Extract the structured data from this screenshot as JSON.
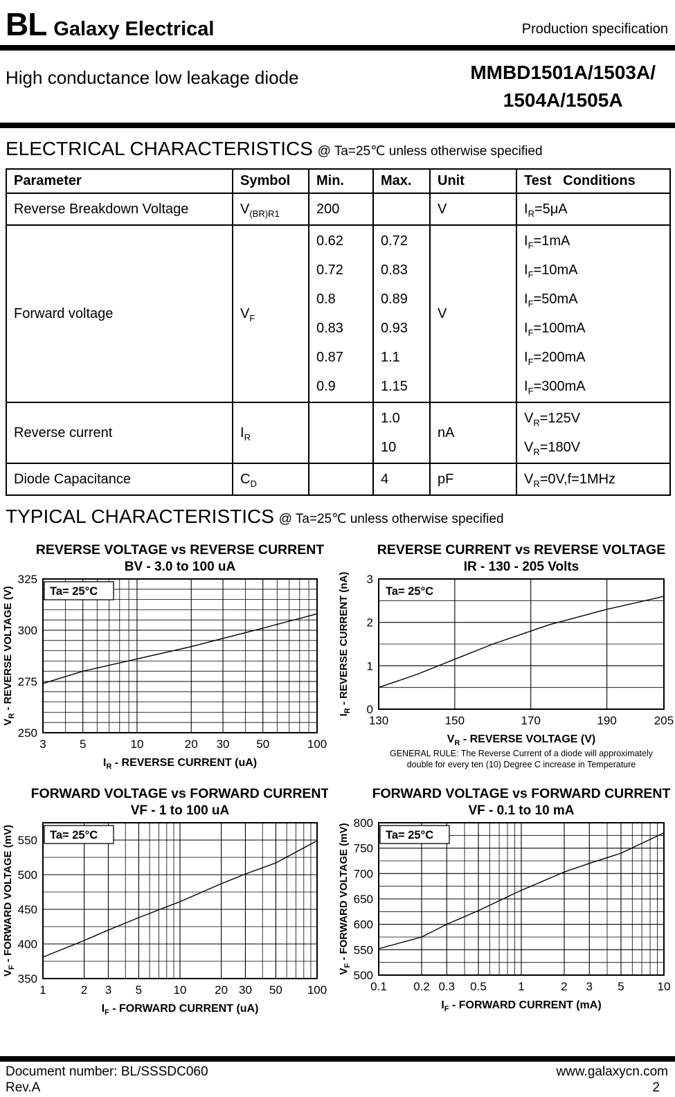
{
  "page": {
    "header": {
      "logo_bl": "BL",
      "logo_rest": "Galaxy Electrical",
      "right": "Production specification"
    },
    "title": {
      "left": "High conductance low leakage diode",
      "right_line1": "MMBD1501A/1503A/",
      "right_line2": "1504A/1505A"
    },
    "elec_heading": {
      "main": "ELECTRICAL CHARACTERISTICS",
      "suffix": "@ Ta=25℃  unless otherwise specified"
    },
    "typ_heading": {
      "main": "TYPICAL CHARACTERISTICS",
      "suffix": "@ Ta=25℃ unless otherwise specified"
    },
    "footer": {
      "doc_number": "Document number: BL/SSSDC060",
      "rev": "Rev.A",
      "website": "www.galaxycn.com",
      "page_number": "2"
    }
  },
  "table": {
    "headers": [
      "Parameter",
      "Symbol",
      "Min.",
      "Max.",
      "Unit",
      "Test   Conditions"
    ],
    "rows": [
      {
        "param": [
          [
            {
              "t": "Reverse Breakdown Voltage"
            }
          ]
        ],
        "symbol": [
          [
            {
              "t": "V"
            },
            {
              "t": "(BR)R1",
              "sub": true
            }
          ]
        ],
        "min": [
          [
            {
              "t": "200"
            }
          ]
        ],
        "max": [],
        "unit": [
          [
            {
              "t": "V"
            }
          ]
        ],
        "cond": [
          [
            {
              "t": "I"
            },
            {
              "t": "R",
              "sub": true
            },
            {
              "t": "=5μA"
            }
          ]
        ]
      },
      {
        "param": [
          [
            {
              "t": "Forward voltage"
            }
          ]
        ],
        "symbol": [
          [
            {
              "t": "V"
            },
            {
              "t": "F",
              "sub": true
            }
          ]
        ],
        "min": [
          [
            {
              "t": "0.62"
            }
          ],
          [
            {
              "t": "0.72"
            }
          ],
          [
            {
              "t": "0.8"
            }
          ],
          [
            {
              "t": "0.83"
            }
          ],
          [
            {
              "t": "0.87"
            }
          ],
          [
            {
              "t": "0.9"
            }
          ]
        ],
        "max": [
          [
            {
              "t": "0.72"
            }
          ],
          [
            {
              "t": "0.83"
            }
          ],
          [
            {
              "t": "0.89"
            }
          ],
          [
            {
              "t": "0.93"
            }
          ],
          [
            {
              "t": "1.1"
            }
          ],
          [
            {
              "t": "1.15"
            }
          ]
        ],
        "unit": [
          [
            {
              "t": "V"
            }
          ]
        ],
        "cond": [
          [
            {
              "t": "I"
            },
            {
              "t": "F",
              "sub": true
            },
            {
              "t": "=1mA"
            }
          ],
          [
            {
              "t": "I"
            },
            {
              "t": "F",
              "sub": true
            },
            {
              "t": "=10mA"
            }
          ],
          [
            {
              "t": "I"
            },
            {
              "t": "F",
              "sub": true
            },
            {
              "t": "=50mA"
            }
          ],
          [
            {
              "t": "I"
            },
            {
              "t": "F",
              "sub": true
            },
            {
              "t": "=100mA"
            }
          ],
          [
            {
              "t": "I"
            },
            {
              "t": "F",
              "sub": true
            },
            {
              "t": "=200mA"
            }
          ],
          [
            {
              "t": "I"
            },
            {
              "t": "F",
              "sub": true
            },
            {
              "t": "=300mA"
            }
          ]
        ]
      },
      {
        "param": [
          [
            {
              "t": "Reverse current"
            }
          ]
        ],
        "symbol": [
          [
            {
              "t": "I"
            },
            {
              "t": "R",
              "sub": true
            }
          ]
        ],
        "min": [],
        "max": [
          [
            {
              "t": "1.0"
            }
          ],
          [
            {
              "t": "10"
            }
          ]
        ],
        "unit": [
          [
            {
              "t": "nA"
            }
          ]
        ],
        "cond": [
          [
            {
              "t": "V"
            },
            {
              "t": "R",
              "sub": true
            },
            {
              "t": "=125V"
            }
          ],
          [
            {
              "t": "V"
            },
            {
              "t": "R",
              "sub": true
            },
            {
              "t": "=180V"
            }
          ]
        ]
      },
      {
        "param": [
          [
            {
              "t": "Diode Capacitance"
            }
          ]
        ],
        "symbol": [
          [
            {
              "t": "C"
            },
            {
              "t": "D",
              "sub": true
            }
          ]
        ],
        "min": [],
        "max": [
          [
            {
              "t": "4"
            }
          ]
        ],
        "unit": [
          [
            {
              "t": "pF"
            }
          ]
        ],
        "cond": [
          [
            {
              "t": "V"
            },
            {
              "t": "R",
              "sub": true
            },
            {
              "t": "=0V,f=1MHz"
            }
          ]
        ]
      }
    ]
  },
  "chart_data": [
    {
      "type": "line",
      "title": "REVERSE VOLTAGE vs REVERSE CURRENT",
      "subtitle": "BV - 3.0 to 100 uA",
      "annotation": {
        "text": "Ta= 25°C",
        "boxed": true
      },
      "x": {
        "scale": "log",
        "min": 3,
        "max": 100,
        "ticks": [
          [
            3,
            "3"
          ],
          [
            5,
            "5"
          ],
          [
            10,
            "10"
          ],
          [
            20,
            "20"
          ],
          [
            30,
            "30"
          ],
          [
            50,
            "50"
          ],
          [
            100,
            "100"
          ]
        ],
        "label": [
          {
            "t": "I"
          },
          {
            "t": "R",
            "sub": true
          },
          {
            "t": " - REVERSE CURRENT  (uA)"
          }
        ]
      },
      "y": {
        "scale": "linear",
        "min": 250,
        "max": 325,
        "minor_step": 5,
        "ticks": [
          [
            250,
            "250"
          ],
          [
            275,
            "275"
          ],
          [
            300,
            "300"
          ],
          [
            325,
            "325"
          ]
        ],
        "label": [
          {
            "t": "V"
          },
          {
            "t": "R",
            "sub": true
          },
          {
            "t": "  - REVERSE VOLTAGE (V)"
          }
        ]
      },
      "points": [
        [
          3,
          274
        ],
        [
          5,
          280
        ],
        [
          10,
          286
        ],
        [
          20,
          292
        ],
        [
          30,
          296
        ],
        [
          50,
          301
        ],
        [
          100,
          308
        ]
      ]
    },
    {
      "type": "line",
      "title": "REVERSE CURRENT vs REVERSE VOLTAGE",
      "subtitle": "IR - 130 - 205 Volts",
      "annotation": {
        "text": "Ta= 25°C",
        "boxed": false
      },
      "x": {
        "scale": "linear",
        "min": 130,
        "max": 205,
        "ticks": [
          [
            130,
            "130"
          ],
          [
            150,
            "150"
          ],
          [
            170,
            "170"
          ],
          [
            190,
            "190"
          ],
          [
            205,
            "205"
          ]
        ],
        "label": [
          {
            "t": "V"
          },
          {
            "t": "R",
            "sub": true
          },
          {
            "t": "  - REVERSE VOLTAGE (V)"
          }
        ]
      },
      "y": {
        "scale": "linear",
        "min": 0,
        "max": 3,
        "minor_step": 0.5,
        "ticks": [
          [
            0,
            "0"
          ],
          [
            1,
            "1"
          ],
          [
            2,
            "2"
          ],
          [
            3,
            "3"
          ]
        ],
        "label": [
          {
            "t": "I"
          },
          {
            "t": "R",
            "sub": true
          },
          {
            "t": " - REVERSE CURRENT (nA)"
          }
        ]
      },
      "points": [
        [
          130,
          0.5
        ],
        [
          140,
          0.8
        ],
        [
          150,
          1.15
        ],
        [
          160,
          1.5
        ],
        [
          170,
          1.8
        ],
        [
          175,
          1.95
        ],
        [
          190,
          2.3
        ],
        [
          205,
          2.6
        ]
      ],
      "note": [
        "GENERAL RULE: The Reverse Current of a diode will approximately",
        "double for every ten (10) Degree C increase in Temperature"
      ]
    },
    {
      "type": "line",
      "title": "FORWARD VOLTAGE vs FORWARD CURRENT",
      "subtitle": "VF - 1 to 100 uA",
      "annotation": {
        "text": "Ta= 25°C",
        "boxed": true
      },
      "x": {
        "scale": "log",
        "min": 1,
        "max": 100,
        "ticks": [
          [
            1,
            "1"
          ],
          [
            2,
            "2"
          ],
          [
            3,
            "3"
          ],
          [
            5,
            "5"
          ],
          [
            10,
            "10"
          ],
          [
            20,
            "20"
          ],
          [
            30,
            "30"
          ],
          [
            50,
            "50"
          ],
          [
            100,
            "100"
          ]
        ],
        "label": [
          {
            "t": "I"
          },
          {
            "t": "F",
            "sub": true
          },
          {
            "t": "  - FORWARD CURRENT  (uA)"
          }
        ]
      },
      "y": {
        "scale": "linear",
        "min": 350,
        "max": 575,
        "minor_step": 25,
        "ticks": [
          [
            350,
            "350"
          ],
          [
            400,
            "400"
          ],
          [
            450,
            "450"
          ],
          [
            500,
            "500"
          ],
          [
            550,
            "550"
          ]
        ],
        "label": [
          {
            "t": "V"
          },
          {
            "t": "F",
            "sub": true
          },
          {
            "t": " - FORWARD VOLTAGE (mV)"
          }
        ]
      },
      "points": [
        [
          1,
          381
        ],
        [
          2,
          405
        ],
        [
          3,
          420
        ],
        [
          5,
          438
        ],
        [
          10,
          461
        ],
        [
          20,
          487
        ],
        [
          30,
          501
        ],
        [
          50,
          517
        ],
        [
          100,
          549
        ]
      ]
    },
    {
      "type": "line",
      "title": "FORWARD VOLTAGE  vs FORWARD CURRENT",
      "subtitle": "VF - 0.1 to 10 mA",
      "annotation": {
        "text": "Ta= 25°C",
        "boxed": true
      },
      "x": {
        "scale": "log",
        "min": 0.1,
        "max": 10,
        "ticks": [
          [
            0.1,
            "0.1"
          ],
          [
            0.2,
            "0.2"
          ],
          [
            0.3,
            "0.3"
          ],
          [
            0.5,
            "0.5"
          ],
          [
            1,
            "1"
          ],
          [
            2,
            "2"
          ],
          [
            3,
            "3"
          ],
          [
            5,
            "5"
          ],
          [
            10,
            "10"
          ]
        ],
        "label": [
          {
            "t": "I"
          },
          {
            "t": "F",
            "sub": true
          },
          {
            "t": " - FORWARD CURRENT  (mA)"
          }
        ]
      },
      "y": {
        "scale": "linear",
        "min": 500,
        "max": 800,
        "minor_step": 25,
        "ticks": [
          [
            500,
            "500"
          ],
          [
            550,
            "550"
          ],
          [
            600,
            "600"
          ],
          [
            650,
            "650"
          ],
          [
            700,
            "700"
          ],
          [
            750,
            "750"
          ],
          [
            800,
            "800"
          ]
        ],
        "label": [
          {
            "t": "V"
          },
          {
            "t": "F",
            "sub": true
          },
          {
            "t": " - FORWARD VOLTAGE (mV)"
          }
        ]
      },
      "points": [
        [
          0.1,
          552
        ],
        [
          0.2,
          575
        ],
        [
          0.3,
          600
        ],
        [
          0.5,
          627
        ],
        [
          1,
          667
        ],
        [
          2,
          703
        ],
        [
          3,
          720
        ],
        [
          5,
          740
        ],
        [
          10,
          780
        ]
      ]
    }
  ]
}
